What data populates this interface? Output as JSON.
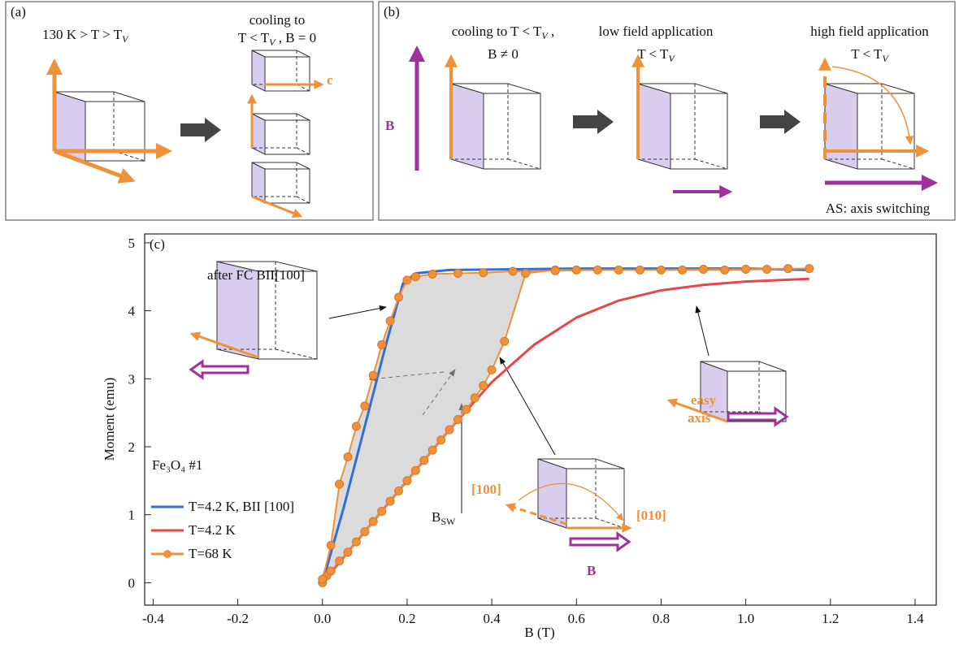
{
  "panel_a": {
    "label": "(a)",
    "condition": {
      "text": "130 K > T > T",
      "sub": "V"
    },
    "cooling": "cooling to",
    "cooling_condition": {
      "text": "T <  T",
      "sub": "V",
      "after": " , B = 0"
    },
    "axis_label": "c"
  },
  "panel_b": {
    "label": "(b)",
    "step1": {
      "text": "cooling to T < T",
      "sub": "V",
      "after": " ,"
    },
    "step1_field": "B ≠ 0",
    "field_label": "B",
    "step2_title": "low field application",
    "step2_condition": {
      "text": "T < T",
      "sub": "V"
    },
    "step3_title": "high field application",
    "step3_condition": {
      "text": "T < T",
      "sub": "V"
    },
    "note": "AS: axis switching"
  },
  "chart_data": {
    "type": "line",
    "panel_label": "(c)",
    "x_label": "B (T)",
    "y_label": "Moment (emu)",
    "xlim": [
      -0.42,
      1.45
    ],
    "ylim": [
      -0.33,
      5.13
    ],
    "xticks": [
      -0.4,
      -0.2,
      {
        "value": 0,
        "label": "0.0"
      },
      0.2,
      0.4,
      0.6,
      0.8,
      {
        "value": 1,
        "label": "1.0"
      },
      1.2,
      1.4
    ],
    "yticks": [
      0,
      1,
      2,
      3,
      4,
      5
    ],
    "legend_title": "Fe₃O₄ #1",
    "series": [
      {
        "name": "T=4.2 K,  BII [100]",
        "color": "#2f6fd6",
        "x": [
          0,
          0.05,
          0.1,
          0.15,
          0.19,
          0.22,
          0.3,
          0.6,
          1.0,
          1.15
        ],
        "values": [
          0,
          1.1,
          2.3,
          3.5,
          4.4,
          4.55,
          4.6,
          4.62,
          4.62,
          4.6
        ]
      },
      {
        "name": "T=4.2 K",
        "color": "#e8474a",
        "x": [
          0,
          0.1,
          0.2,
          0.3,
          0.4,
          0.5,
          0.6,
          0.7,
          0.8,
          0.9,
          1.0,
          1.15
        ],
        "values": [
          0,
          0.75,
          1.5,
          2.25,
          2.95,
          3.5,
          3.9,
          4.15,
          4.3,
          4.38,
          4.43,
          4.47
        ]
      },
      {
        "name": "T=68 K",
        "color": "#f0913a",
        "markers": true,
        "x": [
          0,
          0.01,
          0.02,
          0.04,
          0.06,
          0.08,
          0.1,
          0.12,
          0.14,
          0.16,
          0.18,
          0.2,
          0.22,
          0.24,
          0.26,
          0.28,
          0.3,
          0.32,
          0.34,
          0.36,
          0.38,
          0.4,
          0.43,
          0.48,
          0.55,
          0.6,
          0.7,
          0.8,
          0.9,
          1.0,
          1.1,
          1.15,
          1.05,
          0.95,
          0.85,
          0.75,
          0.65,
          0.55,
          0.45,
          0.38,
          0.32,
          0.26,
          0.22,
          0.2,
          0.18,
          0.16,
          0.14,
          0.12,
          0.1,
          0.08,
          0.06,
          0.04,
          0.02,
          0
        ],
        "values": [
          0,
          0.1,
          0.17,
          0.32,
          0.45,
          0.6,
          0.75,
          0.9,
          1.05,
          1.2,
          1.35,
          1.5,
          1.65,
          1.8,
          1.95,
          2.1,
          2.25,
          2.4,
          2.55,
          2.72,
          2.9,
          3.13,
          3.55,
          4.55,
          4.6,
          4.6,
          4.6,
          4.6,
          4.61,
          4.61,
          4.62,
          4.62,
          4.61,
          4.6,
          4.6,
          4.6,
          4.6,
          4.59,
          4.58,
          4.56,
          4.55,
          4.54,
          4.5,
          4.45,
          4.2,
          3.85,
          3.5,
          3.05,
          2.6,
          2.3,
          1.85,
          1.45,
          0.55,
          0.05
        ]
      }
    ],
    "annotations": {
      "field_cooled": "after FC BII[100]",
      "switching_field": {
        "text": "B",
        "sub": "SW"
      },
      "easy_axis": [
        "easy",
        "axis"
      ],
      "direction_100": "[100]",
      "direction_010": "[010]",
      "field": "B"
    }
  }
}
